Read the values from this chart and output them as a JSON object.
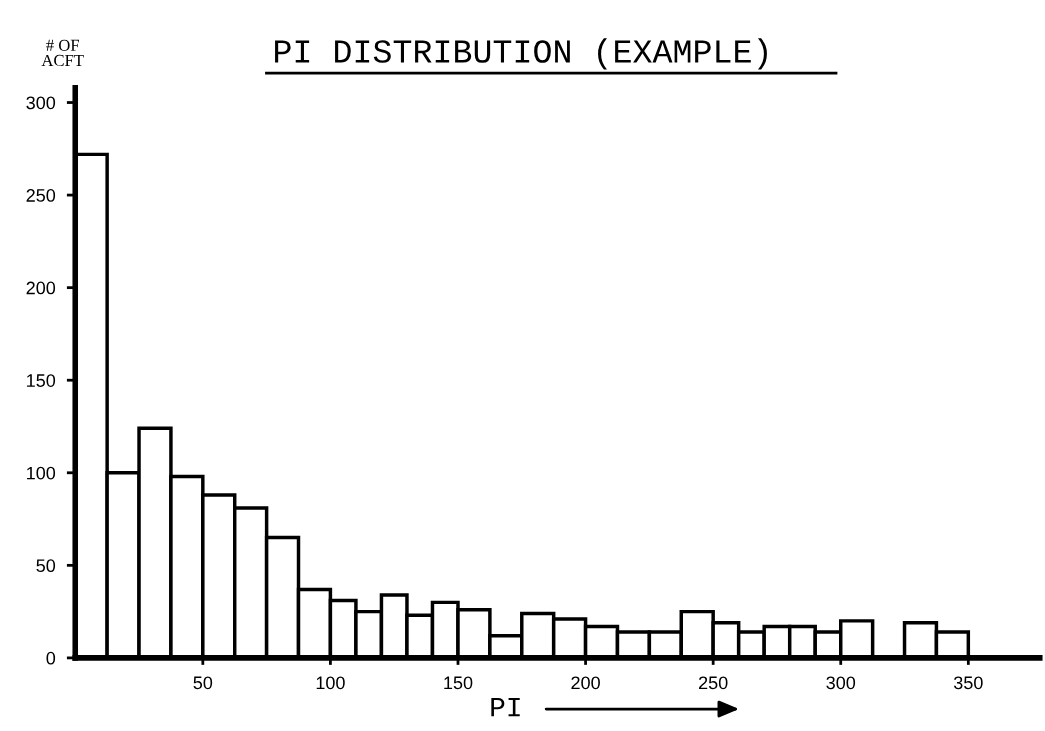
{
  "chart_data": {
    "type": "histogram",
    "title": "PI DISTRIBUTION (EXAMPLE)",
    "xlabel": "PI",
    "ylabel": "# OF\nACFT",
    "bins": [
      0,
      12.5,
      25,
      37.5,
      50,
      62.5,
      75,
      87.5,
      100,
      110,
      120,
      130,
      140,
      150,
      162.5,
      175,
      187.5,
      200,
      212.5,
      225,
      237.5,
      250,
      260,
      270,
      280,
      290,
      300,
      312.5,
      325,
      337.5,
      350
    ],
    "values": [
      272,
      100,
      124,
      98,
      88,
      81,
      65,
      37,
      31,
      25,
      34,
      23,
      30,
      26,
      12,
      24,
      21,
      17,
      14,
      14,
      25,
      19,
      14,
      17,
      17,
      14,
      20,
      0,
      19,
      14
    ],
    "color": "#ffffff",
    "xlim": [
      0,
      378
    ],
    "xticks": [
      50,
      100,
      150,
      200,
      250,
      300,
      350
    ],
    "ylim": [
      0,
      308
    ],
    "yticks": [
      0,
      50,
      100,
      150,
      200,
      250,
      300
    ],
    "grid": false,
    "legend": false
  }
}
